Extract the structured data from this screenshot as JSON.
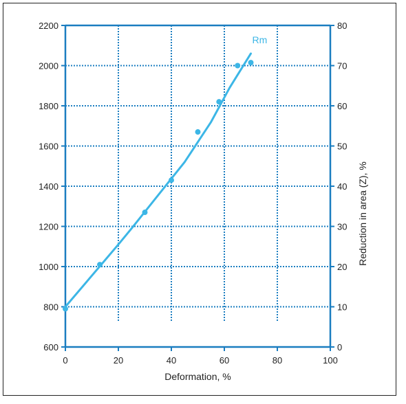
{
  "chart_data": {
    "type": "scatter",
    "xlabel": "Deformation, %",
    "ylabel": "",
    "y2label": "Reduction in area (Z), %",
    "xlim": [
      0,
      100
    ],
    "ylim": [
      600,
      2200
    ],
    "y2lim": [
      0,
      80
    ],
    "x_ticks": [
      0,
      20,
      40,
      60,
      80,
      100
    ],
    "y_ticks": [
      600,
      800,
      1000,
      1200,
      1400,
      1600,
      1800,
      2000,
      2200
    ],
    "y2_ticks": [
      0,
      10,
      20,
      30,
      40,
      50,
      60,
      70,
      80
    ],
    "grid": true,
    "series": [
      {
        "name": "Rm",
        "color": "#3cb6e6",
        "points": [
          [
            0,
            790
          ],
          [
            13,
            1010
          ],
          [
            30,
            1270
          ],
          [
            40,
            1430
          ],
          [
            50,
            1670
          ],
          [
            58,
            1820
          ],
          [
            65,
            2000
          ],
          [
            70,
            2015
          ]
        ],
        "fit_line": [
          [
            0,
            800
          ],
          [
            20,
            1110
          ],
          [
            25,
            1190
          ],
          [
            45,
            1520
          ],
          [
            55,
            1720
          ],
          [
            62,
            1890
          ],
          [
            70,
            2060
          ]
        ]
      }
    ]
  },
  "colors": {
    "axis": "#1a7dc0",
    "grid": "#1a7dc0",
    "series": "#3cb6e6"
  }
}
